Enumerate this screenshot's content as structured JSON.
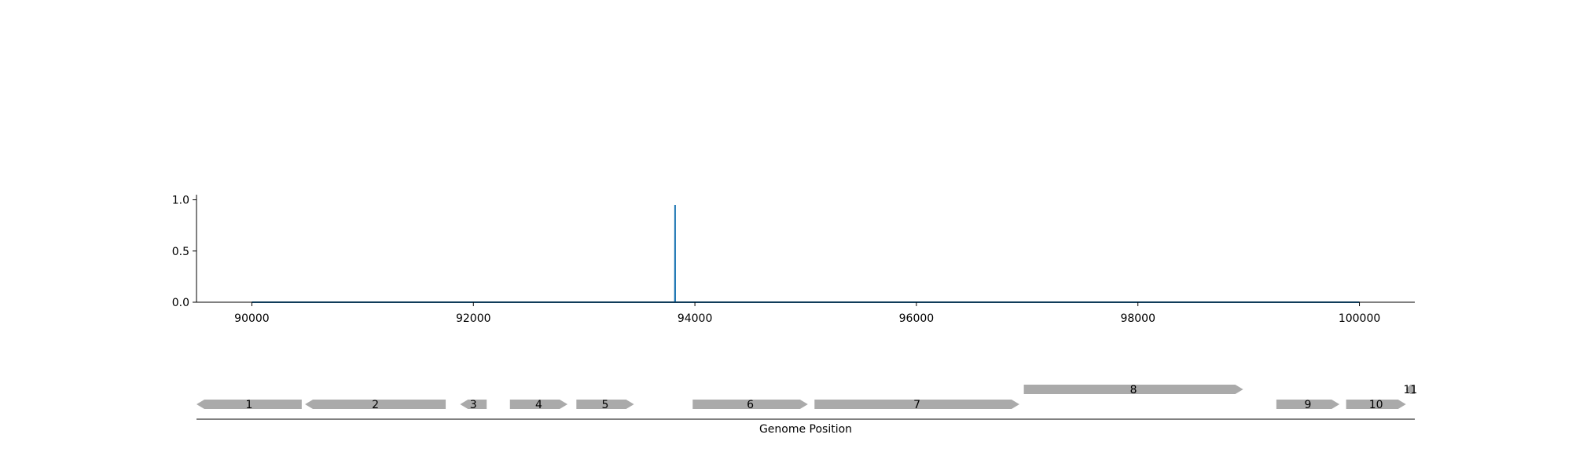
{
  "chart_data": [
    {
      "type": "line",
      "x": [
        90000,
        93820,
        93821,
        93822,
        100000
      ],
      "y": [
        0.0,
        0.0,
        0.95,
        0.0,
        0.0
      ],
      "xlim": [
        89500,
        100500
      ],
      "ylim": [
        0.0,
        1.05
      ],
      "xticks": [
        90000,
        92000,
        94000,
        96000,
        98000,
        100000
      ],
      "yticks": [
        0.0,
        0.5,
        1.0
      ],
      "xtick_labels": [
        "90000",
        "92000",
        "94000",
        "96000",
        "98000",
        "100000"
      ],
      "ytick_labels": [
        "0.0",
        "0.5",
        "1.0"
      ],
      "color": "#1f77b4",
      "grid": false
    },
    {
      "type": "gene-map",
      "xlabel": "Genome Position",
      "xlim": [
        89500,
        100500
      ],
      "color": "#aaaaaa",
      "genes": [
        {
          "label": "1",
          "start": 89500,
          "end": 90450,
          "strand": "-",
          "row": 0
        },
        {
          "label": "2",
          "start": 90480,
          "end": 91750,
          "strand": "-",
          "row": 0
        },
        {
          "label": "3",
          "start": 91880,
          "end": 92120,
          "strand": "-",
          "row": 0
        },
        {
          "label": "4",
          "start": 92330,
          "end": 92850,
          "strand": "+",
          "row": 0
        },
        {
          "label": "5",
          "start": 92930,
          "end": 93450,
          "strand": "+",
          "row": 0
        },
        {
          "label": "6",
          "start": 93980,
          "end": 95020,
          "strand": "+",
          "row": 0
        },
        {
          "label": "7",
          "start": 95080,
          "end": 96930,
          "strand": "+",
          "row": 0
        },
        {
          "label": "8",
          "start": 96970,
          "end": 98950,
          "strand": "+",
          "row": 1
        },
        {
          "label": "9",
          "start": 99250,
          "end": 99820,
          "strand": "+",
          "row": 0
        },
        {
          "label": "10",
          "start": 99880,
          "end": 100420,
          "strand": "+",
          "row": 0
        },
        {
          "label": "11",
          "start": 100420,
          "end": 100500,
          "strand": "-",
          "row": 1
        }
      ]
    }
  ]
}
